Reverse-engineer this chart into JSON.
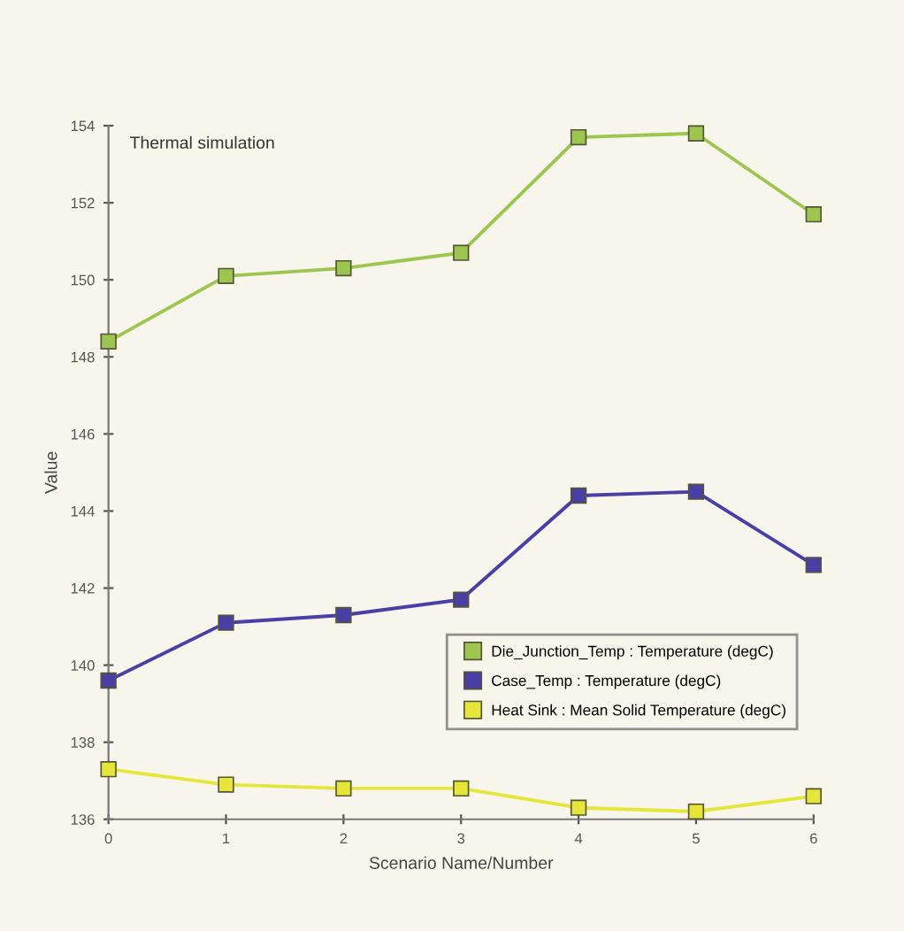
{
  "chart_data": {
    "type": "line",
    "title": "Thermal simulation",
    "xlabel": "Scenario Name/Number",
    "ylabel": "Value",
    "x": [
      0,
      1,
      2,
      3,
      4,
      5,
      6
    ],
    "series": [
      {
        "name": "Die_Junction_Temp : Temperature (degC)",
        "color": "#9cc650",
        "values": [
          148.4,
          150.1,
          150.3,
          150.7,
          153.7,
          153.8,
          151.7
        ]
      },
      {
        "name": "Case_Temp : Temperature (degC)",
        "color": "#4a3fa6",
        "values": [
          139.6,
          141.1,
          141.3,
          141.7,
          144.4,
          144.5,
          142.6
        ]
      },
      {
        "name": "Heat Sink : Mean Solid Temperature (degC)",
        "color": "#e6e63a",
        "values": [
          137.3,
          136.9,
          136.8,
          136.8,
          136.3,
          136.2,
          136.6
        ]
      }
    ],
    "xlim": [
      0,
      6
    ],
    "xticks": [
      0,
      1,
      2,
      3,
      4,
      5,
      6
    ],
    "ylim": [
      136,
      154
    ],
    "yticks": [
      136,
      138,
      140,
      142,
      144,
      146,
      148,
      150,
      152,
      154
    ],
    "grid": false,
    "legend": "bottom right",
    "marker": "square",
    "line_style": "solid"
  }
}
